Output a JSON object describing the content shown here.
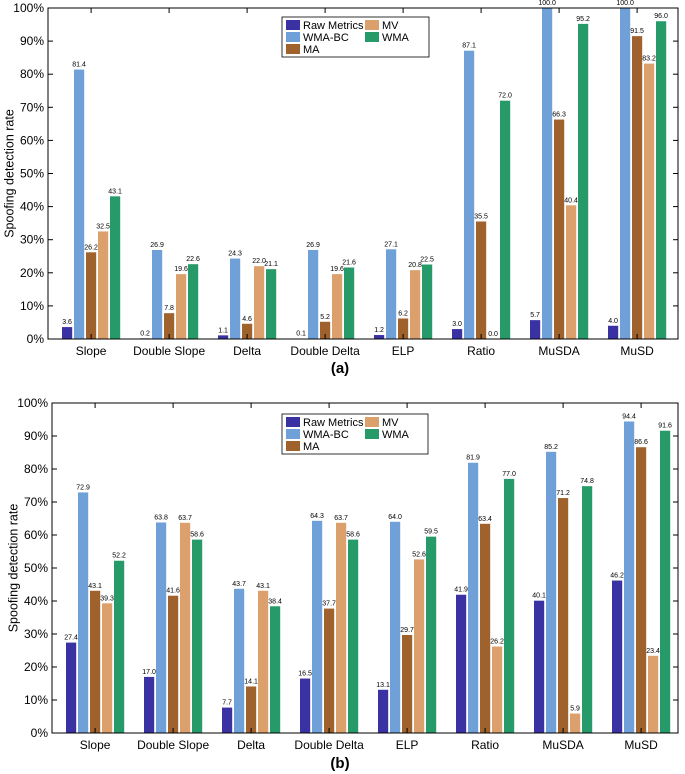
{
  "chart_data": [
    {
      "type": "bar",
      "panel_label": "(a)",
      "ylabel": "Spoofing detection rate",
      "xlabel": "",
      "ylim": [
        0,
        100
      ],
      "yticks": [
        "0%",
        "10%",
        "20%",
        "30%",
        "40%",
        "50%",
        "60%",
        "70%",
        "80%",
        "90%",
        "100%"
      ],
      "categories": [
        "Slope",
        "Double Slope",
        "Delta",
        "Double Delta",
        "ELP",
        "Ratio",
        "MuSDA",
        "MuSD"
      ],
      "legend_position": "top-center",
      "series": [
        {
          "name": "Raw Metrics",
          "color": "#3a32a3",
          "values": [
            3.6,
            0.2,
            1.1,
            0.1,
            1.2,
            3.0,
            5.7,
            4.0
          ],
          "labels": [
            "3.6",
            "0.2",
            "1.1",
            "0.1",
            "1.2",
            "3.0",
            "5.7",
            "4.0"
          ]
        },
        {
          "name": "WMA-BC",
          "color": "#6fa0d8",
          "values": [
            81.4,
            26.9,
            24.3,
            26.9,
            27.1,
            87.1,
            100.0,
            100.0
          ],
          "labels": [
            "81.4",
            "26.9",
            "24.3",
            "26.9",
            "27.1",
            "87.1",
            "100.0",
            "100.0"
          ]
        },
        {
          "name": "MA",
          "color": "#a0622c",
          "values": [
            26.2,
            7.8,
            4.6,
            5.2,
            6.2,
            35.5,
            66.3,
            91.5
          ],
          "labels": [
            "26.2",
            "7.8",
            "4.6",
            "5.2",
            "6.2",
            "35.5",
            "66.3",
            "91.5"
          ]
        },
        {
          "name": "MV",
          "color": "#dca06c",
          "values": [
            32.5,
            19.6,
            22.0,
            19.6,
            20.8,
            0.0,
            40.4,
            83.2
          ],
          "labels": [
            "32.5",
            "19.6",
            "22.0",
            "19.6",
            "20.8",
            "0.0",
            "40.4",
            "83.2"
          ]
        },
        {
          "name": "WMA",
          "color": "#279a69",
          "values": [
            43.1,
            22.6,
            21.1,
            21.6,
            22.5,
            72.0,
            95.2,
            96.0
          ],
          "labels": [
            "43.1",
            "22.6",
            "21.1",
            "21.6",
            "22.5",
            "72.0",
            "95.2",
            "96.0"
          ]
        }
      ]
    },
    {
      "type": "bar",
      "panel_label": "(b)",
      "ylabel": "Spoofing detection rate",
      "xlabel": "",
      "ylim": [
        0,
        100
      ],
      "yticks": [
        "0%",
        "10%",
        "20%",
        "30%",
        "40%",
        "50%",
        "60%",
        "70%",
        "80%",
        "90%",
        "100%"
      ],
      "categories": [
        "Slope",
        "Double Slope",
        "Delta",
        "Double Delta",
        "ELP",
        "Ratio",
        "MuSDA",
        "MuSD"
      ],
      "legend_position": "top-center",
      "series": [
        {
          "name": "Raw Metrics",
          "color": "#3a32a3",
          "values": [
            27.4,
            17.0,
            7.7,
            16.5,
            13.1,
            41.9,
            40.1,
            46.2
          ],
          "labels": [
            "27.4",
            "17.0",
            "7.7",
            "16.5",
            "13.1",
            "41.9",
            "40.1",
            "46.2"
          ]
        },
        {
          "name": "WMA-BC",
          "color": "#6fa0d8",
          "values": [
            72.9,
            63.8,
            43.7,
            64.3,
            64.0,
            81.9,
            85.2,
            94.4
          ],
          "labels": [
            "72.9",
            "63.8",
            "43.7",
            "64.3",
            "64.0",
            "81.9",
            "85.2",
            "94.4"
          ]
        },
        {
          "name": "MA",
          "color": "#a0622c",
          "values": [
            43.1,
            41.6,
            14.1,
            37.7,
            29.7,
            63.4,
            71.2,
            86.6
          ],
          "labels": [
            "43.1",
            "41.6",
            "14.1",
            "37.7",
            "29.7",
            "63.4",
            "71.2",
            "86.6"
          ]
        },
        {
          "name": "MV",
          "color": "#dca06c",
          "values": [
            39.3,
            63.7,
            43.1,
            63.7,
            52.6,
            26.2,
            5.9,
            23.4
          ],
          "labels": [
            "39.3",
            "63.7",
            "43.1",
            "63.7",
            "52.6",
            "26.2",
            "5.9",
            "23.4"
          ]
        },
        {
          "name": "WMA",
          "color": "#279a69",
          "values": [
            52.2,
            58.6,
            38.4,
            58.6,
            59.5,
            77.0,
            74.8,
            91.6
          ],
          "labels": [
            "52.2",
            "58.6",
            "38.4",
            "58.6",
            "59.5",
            "77.0",
            "74.8",
            "91.6"
          ]
        }
      ]
    }
  ]
}
